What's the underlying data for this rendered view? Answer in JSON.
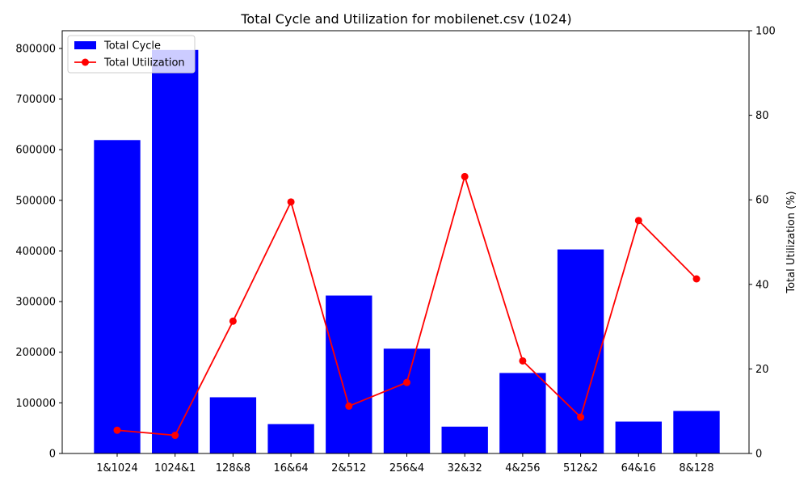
{
  "chart_data": {
    "type": "bar",
    "title": "Total Cycle and Utilization for mobilenet.csv (1024)",
    "categories": [
      "1&1024",
      "1024&1",
      "128&8",
      "16&64",
      "2&512",
      "256&4",
      "32&32",
      "4&256",
      "512&2",
      "64&16",
      "8&128"
    ],
    "series": [
      {
        "name": "Total Cycle",
        "type": "bar",
        "axis": "left",
        "color": "#0000ff",
        "values": [
          619000,
          797000,
          111000,
          58000,
          312000,
          207000,
          53000,
          159000,
          403000,
          63000,
          84000
        ]
      },
      {
        "name": "Total Utilization",
        "type": "line",
        "axis": "right",
        "color": "#ff0000",
        "values": [
          5.5,
          4.3,
          31.3,
          59.5,
          11.2,
          16.8,
          65.5,
          21.9,
          8.6,
          55.1,
          41.3
        ]
      }
    ],
    "xlabel": "",
    "ylabel_left": "",
    "ylabel_right": "Total Utilization (%)",
    "ylim_left": [
      0,
      835000
    ],
    "ylim_right": [
      0,
      100
    ],
    "yticks_left": [
      "0",
      "100000",
      "200000",
      "300000",
      "400000",
      "500000",
      "600000",
      "700000",
      "800000"
    ],
    "yticks_right": [
      "0",
      "20",
      "40",
      "60",
      "80",
      "100"
    ],
    "legend_position": "upper-left",
    "grid": false
  }
}
